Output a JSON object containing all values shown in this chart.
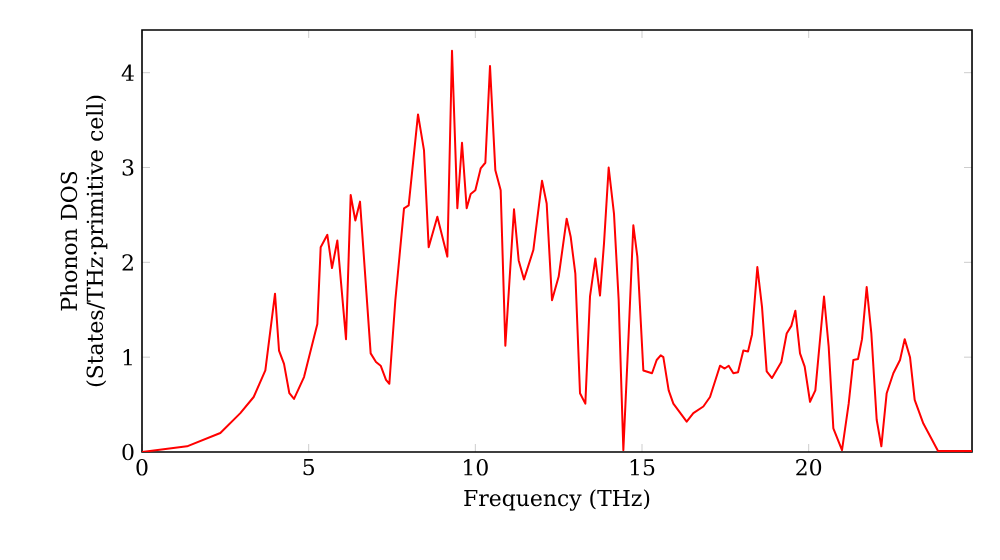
{
  "chart_data": {
    "type": "line",
    "xlabel": "Frequency (THz)",
    "ylabel": "Phonon DOS (States/THz·primitive cell)",
    "xlim": [
      0,
      24.9
    ],
    "ylim": [
      0,
      4.45
    ],
    "xticks": [
      0,
      5,
      10,
      15,
      20
    ],
    "yticks": [
      0,
      1,
      2,
      3,
      4
    ],
    "grid": false,
    "marker": "none",
    "line_style": "solid",
    "series": [
      {
        "color": "#ff0000",
        "x": [
          0,
          1.35,
          2.35,
          2.95,
          3.35,
          3.7,
          3.99,
          4.11,
          4.26,
          4.42,
          4.56,
          4.86,
          5.26,
          5.36,
          5.56,
          5.7,
          5.86,
          6.12,
          6.26,
          6.4,
          6.54,
          6.86,
          7.02,
          7.16,
          7.32,
          7.42,
          7.6,
          7.86,
          8.0,
          8.28,
          8.46,
          8.6,
          8.86,
          9.16,
          9.3,
          9.46,
          9.6,
          9.74,
          9.86,
          10.0,
          10.16,
          10.3,
          10.44,
          10.6,
          10.76,
          10.9,
          11.16,
          11.3,
          11.46,
          11.74,
          12.0,
          12.14,
          12.3,
          12.5,
          12.74,
          12.86,
          13.0,
          13.14,
          13.3,
          13.44,
          13.6,
          13.74,
          13.86,
          14.0,
          14.16,
          14.3,
          14.44,
          14.6,
          14.74,
          14.86,
          15.04,
          15.3,
          15.44,
          15.56,
          15.64,
          15.8,
          15.94,
          16.34,
          16.54,
          16.84,
          17.04,
          17.34,
          17.48,
          17.6,
          17.74,
          17.88,
          18.04,
          18.18,
          18.3,
          18.46,
          18.6,
          18.74,
          18.9,
          19.18,
          19.34,
          19.48,
          19.6,
          19.74,
          19.88,
          20.04,
          20.2,
          20.46,
          20.6,
          20.74,
          21.0,
          21.2,
          21.34,
          21.48,
          21.6,
          21.74,
          21.88,
          22.04,
          22.18,
          22.34,
          22.54,
          22.74,
          22.88,
          23.04,
          23.18,
          23.44,
          23.7,
          23.88,
          24.9
        ],
        "values": [
          0,
          0.06,
          0.2,
          0.41,
          0.58,
          0.86,
          1.67,
          1.07,
          0.93,
          0.62,
          0.56,
          0.79,
          1.35,
          2.16,
          2.29,
          1.94,
          2.23,
          1.19,
          2.71,
          2.44,
          2.64,
          1.04,
          0.95,
          0.91,
          0.76,
          0.72,
          1.6,
          2.57,
          2.6,
          3.56,
          3.18,
          2.16,
          2.48,
          2.06,
          4.23,
          2.57,
          3.26,
          2.57,
          2.72,
          2.76,
          2.99,
          3.05,
          4.07,
          2.97,
          2.76,
          1.12,
          2.56,
          2.02,
          1.82,
          2.13,
          2.86,
          2.62,
          1.6,
          1.85,
          2.46,
          2.27,
          1.88,
          0.62,
          0.51,
          1.64,
          2.04,
          1.65,
          2.2,
          3.0,
          2.51,
          1.6,
          0.02,
          1.25,
          2.39,
          2.06,
          0.86,
          0.83,
          0.97,
          1.02,
          1.0,
          0.65,
          0.51,
          0.32,
          0.41,
          0.48,
          0.58,
          0.91,
          0.88,
          0.91,
          0.83,
          0.84,
          1.07,
          1.06,
          1.24,
          1.95,
          1.53,
          0.85,
          0.78,
          0.95,
          1.25,
          1.33,
          1.49,
          1.04,
          0.9,
          0.53,
          0.65,
          1.64,
          1.11,
          0.25,
          0.02,
          0.51,
          0.97,
          0.98,
          1.19,
          1.74,
          1.25,
          0.34,
          0.06,
          0.62,
          0.83,
          0.97,
          1.19,
          1.0,
          0.55,
          0.3,
          0.13,
          0.01,
          0.01
        ]
      }
    ]
  }
}
